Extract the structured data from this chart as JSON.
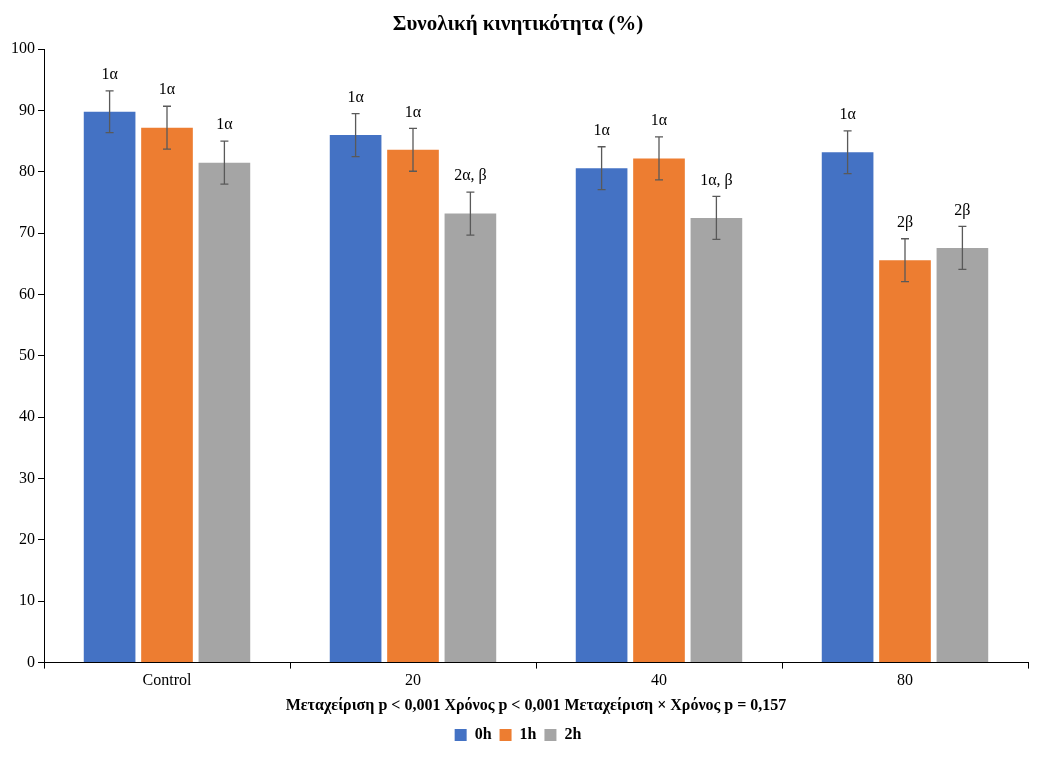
{
  "chart_data": {
    "type": "bar",
    "title": "Συνολική κινητικότητα (%)",
    "xlabel": "Μεταχείριση p < 0,001 Χρόνος p < 0,001 Μεταχείριση × Χρόνος p = 0,157",
    "categories": [
      "Control",
      "20",
      "40",
      "80"
    ],
    "series": [
      {
        "name": "0h",
        "color": "#4472c4",
        "values": [
          89.8,
          86.0,
          80.6,
          83.2
        ],
        "errors": [
          3.4,
          3.5,
          3.5,
          3.5
        ]
      },
      {
        "name": "1h",
        "color": "#ed7d31",
        "values": [
          87.2,
          83.6,
          82.2,
          65.6
        ],
        "errors": [
          3.5,
          3.5,
          3.5,
          3.5
        ]
      },
      {
        "name": "2h",
        "color": "#a5a5a5",
        "values": [
          81.5,
          73.2,
          72.5,
          67.6
        ],
        "errors": [
          3.5,
          3.5,
          3.5,
          3.5
        ]
      }
    ],
    "annotations": [
      "1α",
      "1α",
      "1α",
      "1α",
      "1α",
      "1α",
      "1α",
      "2β",
      "1α",
      "2α, β",
      "1α, β",
      "2β"
    ],
    "ylim": [
      0,
      100
    ],
    "yticks": [
      0,
      10,
      20,
      30,
      40,
      50,
      60,
      70,
      80,
      90,
      100
    ],
    "grid": false,
    "legend": "bottom"
  }
}
